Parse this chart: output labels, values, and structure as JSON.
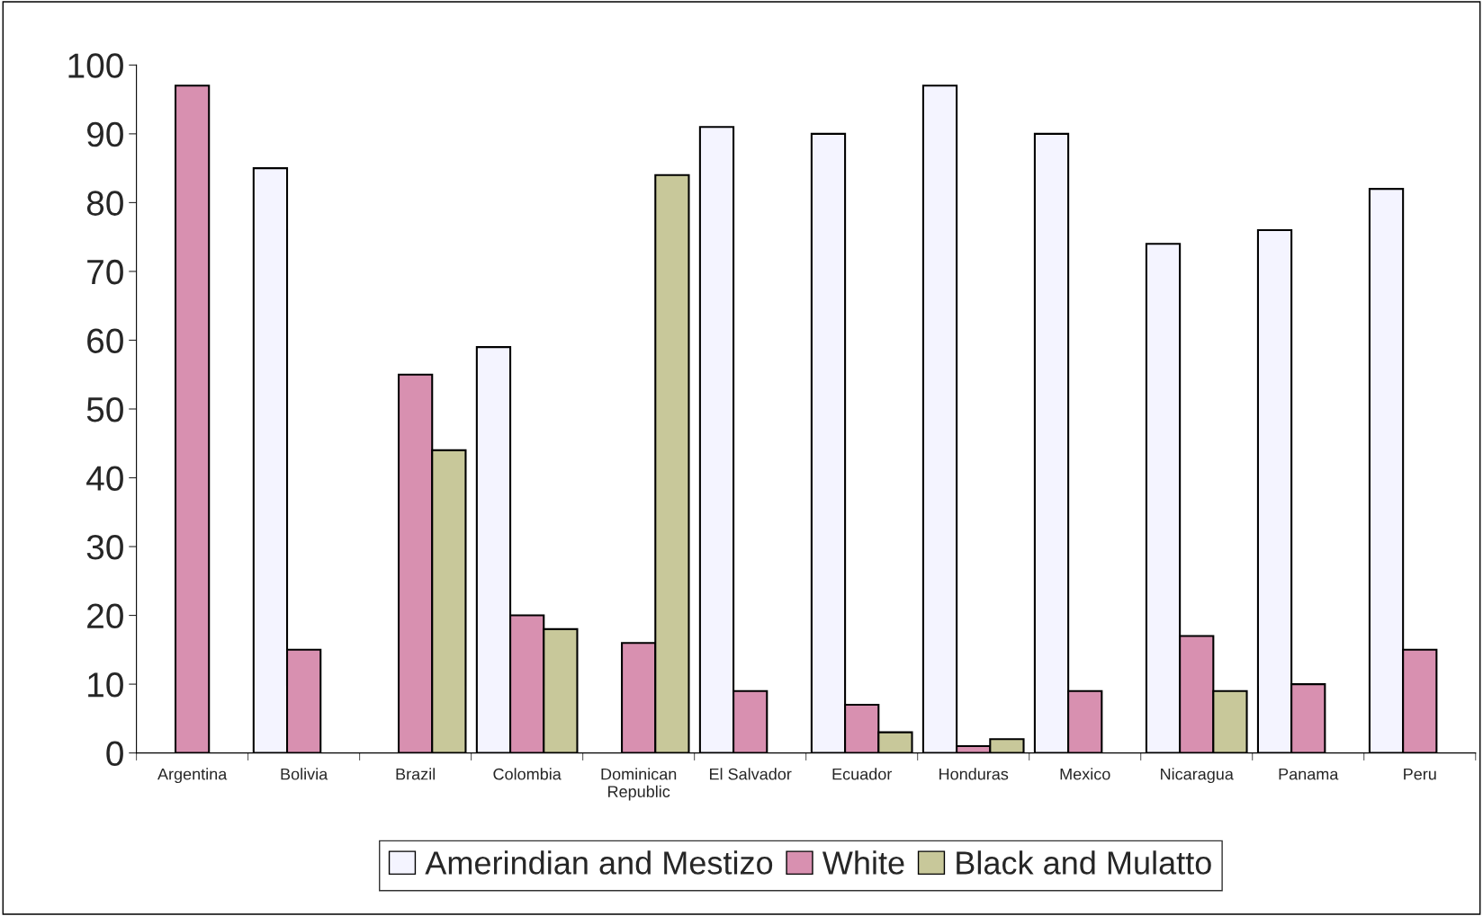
{
  "chart_data": {
    "type": "bar",
    "categories": [
      "Argentina",
      "Bolivia",
      "Brazil",
      "Colombia",
      "Dominican\nRepublic",
      "El Salvador",
      "Ecuador",
      "Honduras",
      "Mexico",
      "Nicaragua",
      "Panama",
      "Peru"
    ],
    "series": [
      {
        "name": "Amerindian and Mestizo",
        "color": "#f4f4ff",
        "values": [
          null,
          85,
          null,
          59,
          null,
          91,
          90,
          97,
          90,
          74,
          76,
          82
        ]
      },
      {
        "name": "White",
        "color": "#d890b0",
        "values": [
          97,
          15,
          55,
          20,
          16,
          9,
          7,
          1,
          9,
          17,
          10,
          15
        ]
      },
      {
        "name": "Black and Mulatto",
        "color": "#c8c89a",
        "values": [
          null,
          null,
          44,
          18,
          84,
          null,
          3,
          2,
          null,
          9,
          null,
          null
        ]
      }
    ],
    "ylim": [
      0,
      100
    ],
    "yticks": [
      0,
      10,
      20,
      30,
      40,
      50,
      60,
      70,
      80,
      90,
      100
    ],
    "grid": false,
    "legend": "bottom"
  }
}
